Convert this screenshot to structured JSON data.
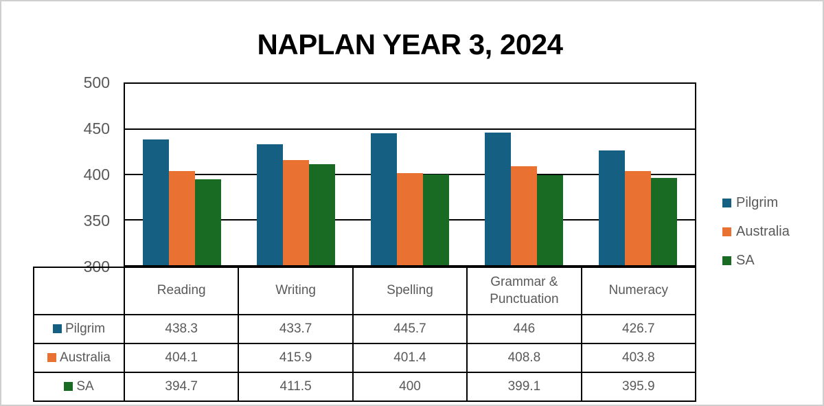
{
  "title": "NAPLAN YEAR 3, 2024",
  "chart_data": {
    "type": "bar",
    "title": "NAPLAN YEAR 3, 2024",
    "categories": [
      "Reading",
      "Writing",
      "Spelling",
      "Grammar & Punctuation",
      "Numeracy"
    ],
    "series": [
      {
        "name": "Pilgrim",
        "color": "#156082",
        "values": [
          438.3,
          433.7,
          445.7,
          446,
          426.7
        ]
      },
      {
        "name": "Australia",
        "color": "#E97132",
        "values": [
          404.1,
          415.9,
          401.4,
          408.8,
          403.8
        ]
      },
      {
        "name": "SA",
        "color": "#196B24",
        "values": [
          394.7,
          411.5,
          400,
          399.1,
          395.9
        ]
      }
    ],
    "ylim": [
      300,
      500
    ],
    "yticks": [
      300,
      350,
      400,
      450,
      500
    ],
    "grid": true,
    "legend_position": "right",
    "data_table_shown": true,
    "text_color": "#595959",
    "axis_color": "#000000"
  }
}
